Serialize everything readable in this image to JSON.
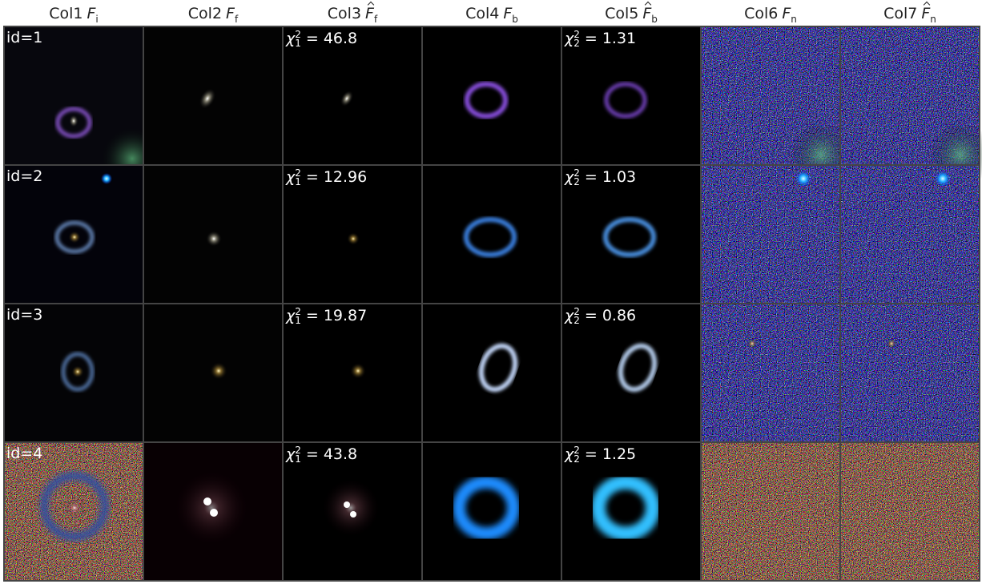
{
  "header": {
    "columns": [
      {
        "label": "Col1",
        "symbol": "F",
        "subscript": "i",
        "hat": false
      },
      {
        "label": "Col2",
        "symbol": "F",
        "subscript": "f",
        "hat": false
      },
      {
        "label": "Col3",
        "symbol": "F",
        "subscript": "f",
        "hat": true
      },
      {
        "label": "Col4",
        "symbol": "F",
        "subscript": "b",
        "hat": false
      },
      {
        "label": "Col5",
        "symbol": "F",
        "subscript": "b",
        "hat": true
      },
      {
        "label": "Col6",
        "symbol": "F",
        "subscript": "n",
        "hat": false
      },
      {
        "label": "Col7",
        "symbol": "F",
        "subscript": "n",
        "hat": true
      }
    ]
  },
  "rows": [
    {
      "id_label": "id=1",
      "chi_f": {
        "symbol": "χ",
        "superscript": "2",
        "subscript": "1",
        "relation": "=",
        "value": 46.8
      },
      "chi_b": {
        "symbol": "χ",
        "superscript": "2",
        "subscript": "2",
        "relation": "=",
        "value": 1.31
      }
    },
    {
      "id_label": "id=2",
      "chi_f": {
        "symbol": "χ",
        "superscript": "2",
        "subscript": "1",
        "relation": "=",
        "value": 12.96
      },
      "chi_b": {
        "symbol": "χ",
        "superscript": "2",
        "subscript": "2",
        "relation": "=",
        "value": 1.03
      }
    },
    {
      "id_label": "id=3",
      "chi_f": {
        "symbol": "χ",
        "superscript": "2",
        "subscript": "1",
        "relation": "=",
        "value": 19.87
      },
      "chi_b": {
        "symbol": "χ",
        "superscript": "2",
        "subscript": "2",
        "relation": "=",
        "value": 0.86
      }
    },
    {
      "id_label": "id=4",
      "chi_f": {
        "symbol": "χ",
        "superscript": "2",
        "subscript": "1",
        "relation": "=",
        "value": 43.8
      },
      "chi_b": {
        "symbol": "χ",
        "superscript": "2",
        "subscript": "2",
        "relation": "=",
        "value": 1.25
      }
    }
  ]
}
